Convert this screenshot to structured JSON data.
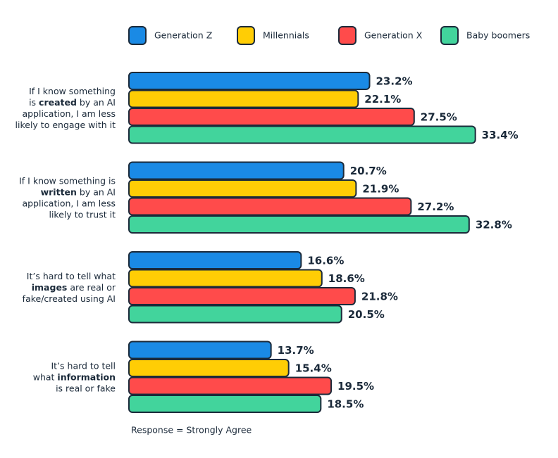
{
  "chart_data": {
    "type": "bar",
    "orientation": "horizontal",
    "categories": [
      [
        [
          {
            "text": "If I know something",
            "bold": false
          }
        ],
        [
          {
            "text": "is ",
            "bold": false
          },
          {
            "text": "created",
            "bold": true
          },
          {
            "text": " by an AI",
            "bold": false
          }
        ],
        [
          {
            "text": "application, I am less",
            "bold": false
          }
        ],
        [
          {
            "text": "likely to engage with it",
            "bold": false
          }
        ]
      ],
      [
        [
          {
            "text": "If I know something is",
            "bold": false
          }
        ],
        [
          {
            "text": "written",
            "bold": true
          },
          {
            "text": " by an AI",
            "bold": false
          }
        ],
        [
          {
            "text": "application, I am less",
            "bold": false
          }
        ],
        [
          {
            "text": "likely to trust it",
            "bold": false
          }
        ]
      ],
      [
        [
          {
            "text": "It’s hard to tell what",
            "bold": false
          }
        ],
        [
          {
            "text": "images",
            "bold": true
          },
          {
            "text": " are real or",
            "bold": false
          }
        ],
        [
          {
            "text": "fake/created using AI",
            "bold": false
          }
        ]
      ],
      [
        [
          {
            "text": "It’s hard to tell",
            "bold": false
          }
        ],
        [
          {
            "text": "what ",
            "bold": false
          },
          {
            "text": "information",
            "bold": true
          }
        ],
        [
          {
            "text": "is real or fake",
            "bold": false
          }
        ]
      ]
    ],
    "series": [
      {
        "name": "Generation Z",
        "color": "#1a8ae5",
        "values": [
          23.2,
          20.7,
          16.6,
          13.7
        ],
        "value_labels": [
          "23.2%",
          "20.7%",
          "16.6%",
          "13.7%"
        ]
      },
      {
        "name": "Millennials",
        "color": "#ffcd05",
        "values": [
          22.1,
          21.9,
          18.6,
          15.4
        ],
        "value_labels": [
          "22.1%",
          "21.9%",
          "18.6%",
          "15.4%"
        ]
      },
      {
        "name": "Generation X",
        "color": "#ff4b4b",
        "values": [
          27.5,
          27.2,
          21.8,
          19.5
        ],
        "value_labels": [
          "27.5%",
          "27.2%",
          "21.8%",
          "19.5%"
        ]
      },
      {
        "name": "Baby boomers",
        "color": "#42d49c",
        "values": [
          33.4,
          32.8,
          20.5,
          18.5
        ],
        "value_labels": [
          "33.4%",
          "32.8%",
          "20.5%",
          "18.5%"
        ]
      }
    ],
    "note": "Response = Strongly Agree"
  }
}
